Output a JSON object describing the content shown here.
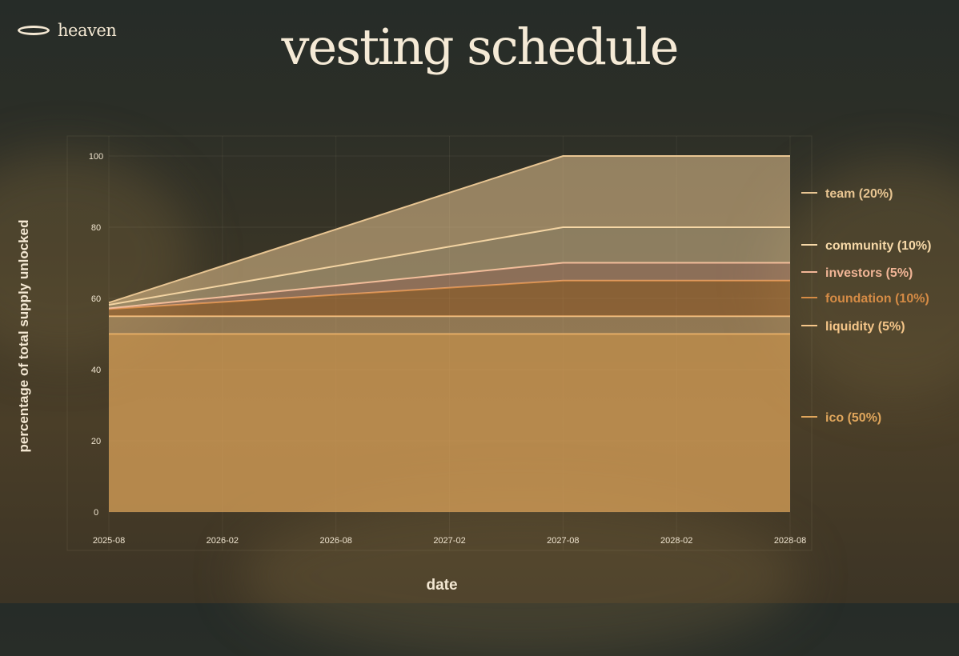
{
  "logo": {
    "text": "heaven"
  },
  "chart_data": {
    "type": "area",
    "stacked": true,
    "title": "vesting schedule",
    "xlabel": "date",
    "ylabel": "percentage of total supply unlocked",
    "x": [
      "2025-08",
      "2026-02",
      "2026-08",
      "2027-02",
      "2027-08",
      "2028-02",
      "2028-08"
    ],
    "ylim": [
      0,
      100
    ],
    "yticks": [
      0,
      20,
      40,
      60,
      80,
      100
    ],
    "grid": true,
    "legend_position": "right",
    "series": [
      {
        "name": "ico (50%)",
        "color": "#e0a65c",
        "values": [
          50,
          50,
          50,
          50,
          50,
          50,
          50
        ]
      },
      {
        "name": "liquidity (5%)",
        "color": "#f5c689",
        "values": [
          5,
          5,
          5,
          5,
          5,
          5,
          5
        ]
      },
      {
        "name": "foundation (10%)",
        "color": "#d58b45",
        "values": [
          2,
          4,
          6,
          8,
          10,
          10,
          10
        ]
      },
      {
        "name": "investors (5%)",
        "color": "#f1b596",
        "values": [
          0.2,
          1.4,
          2.6,
          3.8,
          5,
          5,
          5
        ]
      },
      {
        "name": "community (10%)",
        "color": "#f7d9a8",
        "values": [
          1,
          3.25,
          5.5,
          7.75,
          10,
          10,
          10
        ]
      },
      {
        "name": "team (20%)",
        "color": "#e8c592",
        "values": [
          0.6,
          5.45,
          10.3,
          15.15,
          20,
          20,
          20
        ]
      }
    ]
  }
}
